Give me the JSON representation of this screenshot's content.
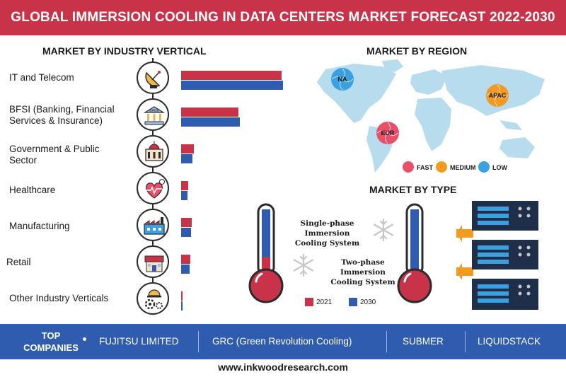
{
  "header": {
    "title": "GLOBAL IMMERSION COOLING IN DATA CENTERS MARKET FORECAST 2022-2030"
  },
  "chart_data": [
    {
      "type": "bar",
      "title": "MARKET BY INDUSTRY VERTICAL",
      "categories": [
        "IT and Telecom",
        "BFSI (Banking, Financial Services & Insurance)",
        "Government & Public Sector",
        "Healthcare",
        "Manufacturing",
        "Retail",
        "Other Industry Verticals"
      ],
      "icons": [
        "satellite-dish-icon",
        "bank-icon",
        "government-building-icon",
        "heart-health-icon",
        "factory-icon",
        "store-icon",
        "gears-hardhat-icon"
      ],
      "series": [
        {
          "name": "2021",
          "color": "#c8334a",
          "values": [
            142,
            81,
            18,
            10,
            15,
            13,
            2
          ]
        },
        {
          "name": "2030",
          "color": "#2f5cae",
          "values": [
            144,
            83,
            16,
            9,
            14,
            12,
            2
          ]
        }
      ],
      "orientation": "horizontal"
    },
    {
      "type": "map",
      "title": "MARKET BY REGION",
      "regions": [
        {
          "label": "NA",
          "growth": "LOW",
          "color": "#3aa0e0"
        },
        {
          "label": "EUR",
          "growth": "FAST",
          "color": "#e8506a"
        },
        {
          "label": "APAC",
          "growth": "MEDIUM",
          "color": "#f39a22"
        }
      ],
      "legend": [
        {
          "label": "FAST",
          "color": "#e8506a"
        },
        {
          "label": "MEDIUM",
          "color": "#f39a22"
        },
        {
          "label": "LOW",
          "color": "#3aa0e0"
        }
      ]
    },
    {
      "type": "thermometer",
      "title": "MARKET BY TYPE",
      "categories": [
        "Single-phase Immersion Cooling System",
        "Two-phase Immersion Cooling System"
      ],
      "series": [
        {
          "name": "2021",
          "color": "#c8334a",
          "values": [
            0.25,
            0.05
          ]
        },
        {
          "name": "2030",
          "color": "#2f5cae",
          "values": [
            0.75,
            0.95
          ]
        }
      ]
    }
  ],
  "type_labels": {
    "single_line1": "Single-phase Immersion",
    "single_line2": "Cooling System",
    "two_line1": "Two-phase Immersion",
    "two_line2": "Cooling System"
  },
  "legend_years": {
    "y2021": "2021",
    "y2030": "2030"
  },
  "footer": {
    "top_companies_line1": "TOP",
    "top_companies_line2": "COMPANIES",
    "companies": [
      "FUJITSU LIMITED",
      "GRC (Green Revolution Cooling)",
      "SUBMER",
      "LIQUIDSTACK"
    ],
    "website": "www.inkwoodresearch.com"
  }
}
